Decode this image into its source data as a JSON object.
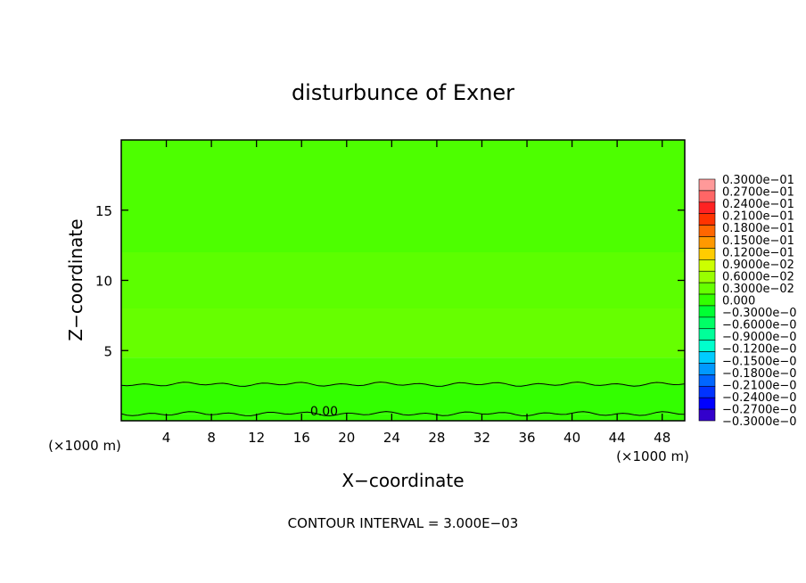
{
  "chart_data": {
    "type": "heatmap",
    "title": "disturbunce of Exner",
    "xlabel": "X−coordinate",
    "ylabel": "Z−coordinate",
    "x_unit": "(×1000 m)",
    "y_unit": "(×1000 m)",
    "xlim": [
      0,
      50
    ],
    "ylim": [
      0,
      20
    ],
    "x_ticks": [
      4,
      8,
      12,
      16,
      20,
      24,
      28,
      32,
      36,
      40,
      44,
      48
    ],
    "y_ticks": [
      5,
      10,
      15
    ],
    "contour_interval_text": "CONTOUR INTERVAL = 3.000E−03",
    "contour_label": "0.00",
    "colorbar": {
      "levels": [
        "0.3000e−01",
        "0.2700e−01",
        "0.2400e−01",
        "0.2100e−01",
        "0.1800e−01",
        "0.1500e−01",
        "0.1200e−01",
        "0.9000e−02",
        "0.6000e−02",
        "0.3000e−02",
        "0.000",
        "−0.3000e−0",
        "−0.6000e−0",
        "−0.9000e−0",
        "−0.1200e−0",
        "−0.1500e−0",
        "−0.1800e−0",
        "−0.2100e−0",
        "−0.2400e−0",
        "−0.2700e−0",
        "−0.3000e−0"
      ],
      "colors": [
        "#ff9999",
        "#ff6666",
        "#ff2222",
        "#ff3300",
        "#ff6600",
        "#ff9900",
        "#ffcc00",
        "#ccff00",
        "#99ff00",
        "#66ff00",
        "#33ff00",
        "#00ff33",
        "#00ff66",
        "#00ff99",
        "#00ffcc",
        "#00ccff",
        "#0099ff",
        "#0066ff",
        "#0033ff",
        "#0000ff",
        "#3300cc"
      ]
    },
    "field_bands": [
      {
        "z_bottom": 0,
        "z_top": 0.5,
        "color": "#33ff00"
      },
      {
        "z_bottom": 0.5,
        "z_top": 2.6,
        "color": "#33ff00"
      },
      {
        "z_bottom": 2.6,
        "z_top": 4.5,
        "color": "#4dff00"
      },
      {
        "z_bottom": 4.5,
        "z_top": 8.0,
        "color": "#66ff00"
      },
      {
        "z_bottom": 8.0,
        "z_top": 12.0,
        "color": "#5cff00"
      },
      {
        "z_bottom": 12.0,
        "z_top": 20.0,
        "color": "#4dff00"
      }
    ],
    "contour_lines_z": [
      0.5,
      2.6
    ]
  }
}
